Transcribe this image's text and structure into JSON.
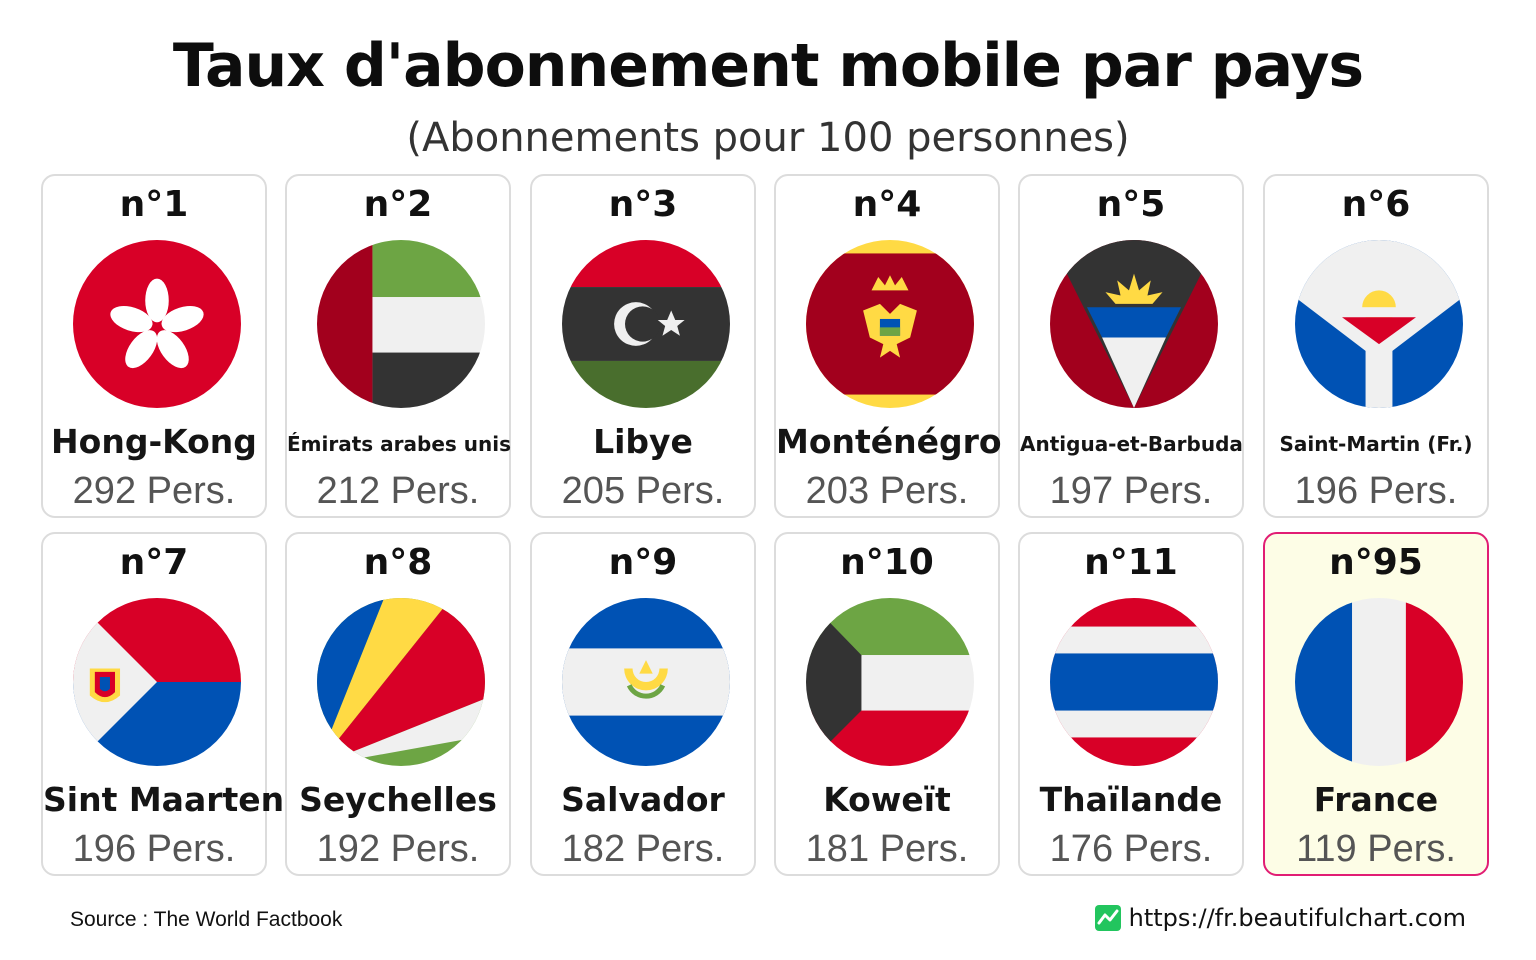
{
  "chart_data": {
    "type": "table",
    "title": "Taux d'abonnement mobile par pays",
    "subtitle": "(Abonnements pour 100 personnes)",
    "unit": "Pers.",
    "entries": [
      {
        "rank_label": "n°1",
        "country": "Hong-Kong",
        "value": 292,
        "value_label": "292 Pers.",
        "flag_icon": "hong-kong-flag-icon"
      },
      {
        "rank_label": "n°2",
        "country": "Émirats arabes unis",
        "value": 212,
        "value_label": "212 Pers.",
        "flag_icon": "uae-flag-icon"
      },
      {
        "rank_label": "n°3",
        "country": "Libye",
        "value": 205,
        "value_label": "205 Pers.",
        "flag_icon": "libya-flag-icon"
      },
      {
        "rank_label": "n°4",
        "country": "Monténégro",
        "value": 203,
        "value_label": "203 Pers.",
        "flag_icon": "montenegro-flag-icon"
      },
      {
        "rank_label": "n°5",
        "country": "Antigua-et-Barbuda",
        "value": 197,
        "value_label": "197 Pers.",
        "flag_icon": "antigua-barbuda-flag-icon"
      },
      {
        "rank_label": "n°6",
        "country": "Saint-Martin (Fr.)",
        "value": 196,
        "value_label": "196 Pers.",
        "flag_icon": "saint-martin-flag-icon"
      },
      {
        "rank_label": "n°7",
        "country": "Sint Maarten",
        "value": 196,
        "value_label": "196 Pers.",
        "flag_icon": "sint-maarten-flag-icon"
      },
      {
        "rank_label": "n°8",
        "country": "Seychelles",
        "value": 192,
        "value_label": "192 Pers.",
        "flag_icon": "seychelles-flag-icon"
      },
      {
        "rank_label": "n°9",
        "country": "Salvador",
        "value": 182,
        "value_label": "182 Pers.",
        "flag_icon": "el-salvador-flag-icon"
      },
      {
        "rank_label": "n°10",
        "country": "Koweït",
        "value": 181,
        "value_label": "181 Pers.",
        "flag_icon": "kuwait-flag-icon"
      },
      {
        "rank_label": "n°11",
        "country": "Thaïlande",
        "value": 176,
        "value_label": "176 Pers.",
        "flag_icon": "thailand-flag-icon"
      },
      {
        "rank_label": "n°95",
        "country": "France",
        "value": 119,
        "value_label": "119 Pers.",
        "flag_icon": "france-flag-icon",
        "highlighted": true
      }
    ]
  },
  "footer": {
    "source": "Source : The World Factbook",
    "site": "https://fr.beautifulchart.com",
    "site_icon": "line-chart-icon"
  },
  "colors": {
    "highlight_border": "#e11d74",
    "highlight_fill": "#fdfde6"
  }
}
